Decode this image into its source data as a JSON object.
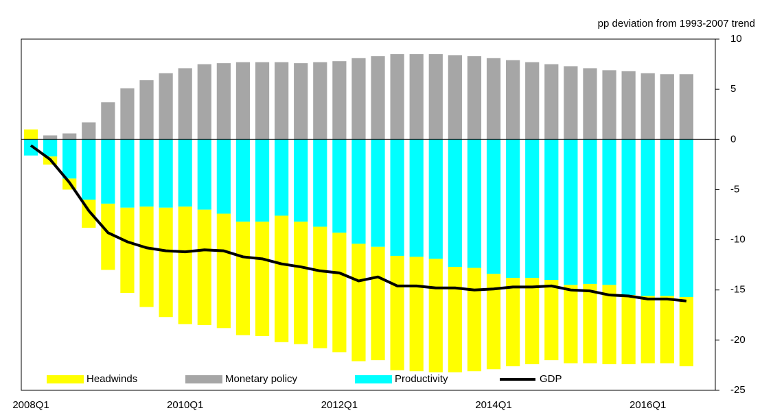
{
  "chart_data": {
    "type": "bar",
    "stacked": true,
    "annotation": "pp deviation from 1993-2007 trend",
    "categories": [
      "2008Q1",
      null,
      null,
      null,
      null,
      null,
      null,
      null,
      "2010Q1",
      null,
      null,
      null,
      null,
      null,
      null,
      null,
      "2012Q1",
      null,
      null,
      null,
      null,
      null,
      null,
      null,
      "2014Q1",
      null,
      null,
      null,
      null,
      null,
      null,
      null,
      "2016Q1",
      null,
      null
    ],
    "series": [
      {
        "name": "Headwinds",
        "color": "#ffff00",
        "values": [
          1.0,
          -0.8,
          -1.1,
          -2.8,
          -6.6,
          -8.5,
          -10.0,
          -10.9,
          -11.7,
          -11.5,
          -11.4,
          -11.3,
          -11.4,
          -12.6,
          -12.2,
          -12.1,
          -11.9,
          -11.7,
          -11.3,
          -11.4,
          -11.4,
          -11.3,
          -10.5,
          -10.3,
          -9.5,
          -8.8,
          -8.6,
          -8.0,
          -7.8,
          -7.9,
          -7.9,
          -6.9,
          -6.7,
          -6.7,
          -6.9
        ]
      },
      {
        "name": "Monetary policy",
        "color": "#a6a6a6",
        "values": [
          0,
          0.4,
          0.6,
          1.7,
          3.7,
          5.1,
          5.9,
          6.6,
          7.1,
          7.5,
          7.6,
          7.7,
          7.7,
          7.7,
          7.6,
          7.7,
          7.8,
          8.1,
          8.3,
          8.5,
          8.5,
          8.5,
          8.4,
          8.3,
          8.1,
          7.9,
          7.7,
          7.5,
          7.3,
          7.1,
          6.9,
          6.8,
          6.6,
          6.5,
          6.5
        ]
      },
      {
        "name": "Productivity",
        "color": "#00ffff",
        "values": [
          -1.6,
          -1.7,
          -3.9,
          -6.0,
          -6.4,
          -6.8,
          -6.7,
          -6.8,
          -6.7,
          -7.0,
          -7.4,
          -8.2,
          -8.2,
          -7.6,
          -8.2,
          -8.7,
          -9.3,
          -10.4,
          -10.7,
          -11.6,
          -11.7,
          -11.9,
          -12.7,
          -12.8,
          -13.4,
          -13.8,
          -13.8,
          -14.0,
          -14.5,
          -14.4,
          -14.5,
          -15.5,
          -15.6,
          -15.6,
          -15.7
        ]
      },
      {
        "name": "GDP",
        "type": "line",
        "color": "#000000",
        "values": [
          -0.6,
          -2.0,
          -4.3,
          -7.1,
          -9.3,
          -10.2,
          -10.8,
          -11.1,
          -11.2,
          -11.0,
          -11.1,
          -11.7,
          -11.9,
          -12.4,
          -12.7,
          -13.1,
          -13.3,
          -14.1,
          -13.7,
          -14.6,
          -14.6,
          -14.8,
          -14.8,
          -15.0,
          -14.9,
          -14.7,
          -14.7,
          -14.6,
          -15.0,
          -15.1,
          -15.5,
          -15.6,
          -15.9,
          -15.9,
          -16.1
        ]
      }
    ],
    "ylim": [
      -25,
      10
    ],
    "yticks": [
      -25,
      -20,
      -15,
      -10,
      -5,
      0,
      5,
      10
    ],
    "y_axis_side": "right",
    "grid": false,
    "legend": "bottom"
  }
}
